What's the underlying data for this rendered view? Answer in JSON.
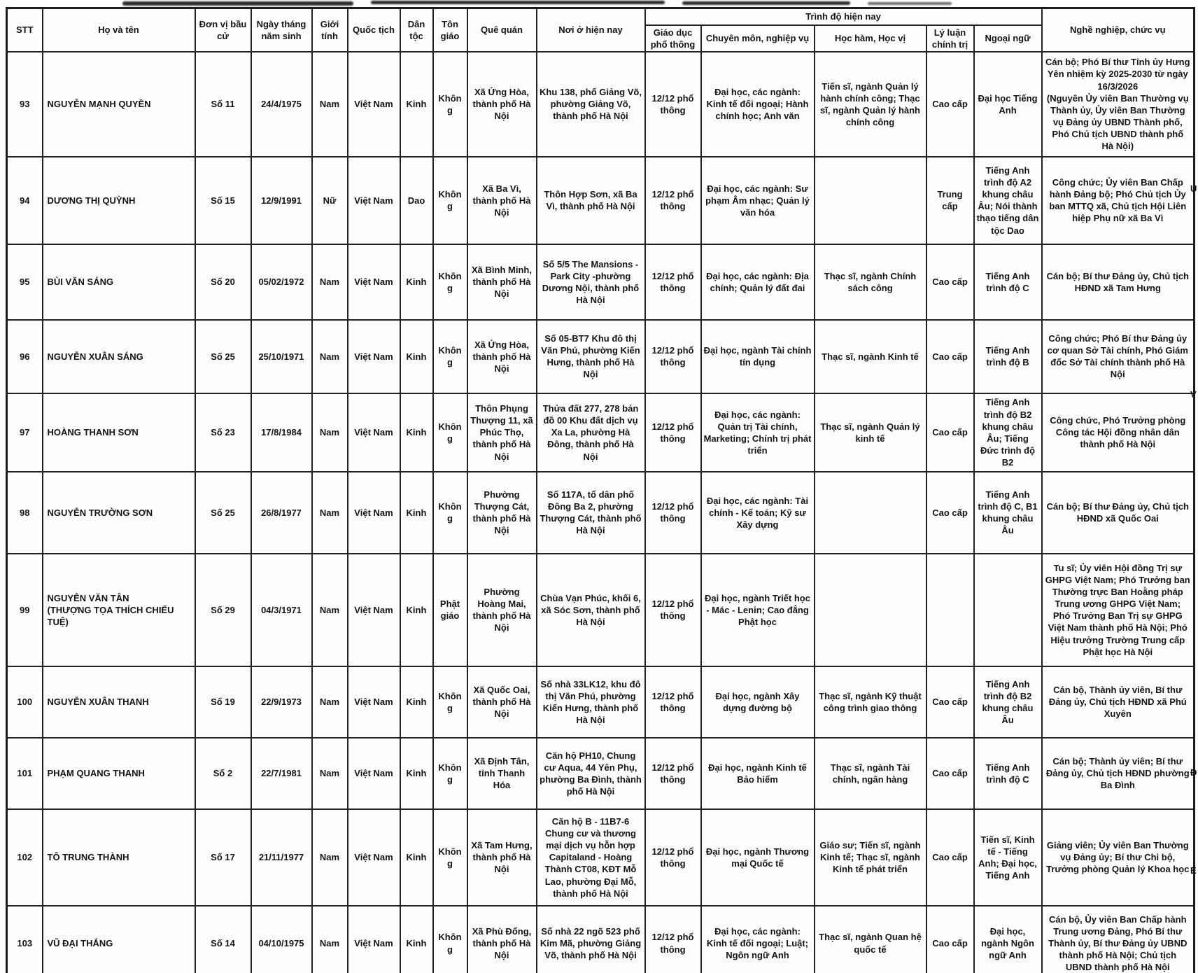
{
  "table": {
    "group_header": "Trình độ hiện nay",
    "columns": {
      "stt": "STT",
      "name": "Họ và tên",
      "unit": "Đơn vị bầu cử",
      "dob": "Ngày tháng năm sinh",
      "gender": "Giới tính",
      "nationality": "Quốc tịch",
      "ethnicity": "Dân tộc",
      "religion": "Tôn giáo",
      "hometown": "Quê quán",
      "residence": "Nơi ở hiện nay",
      "education": "Giáo dục phổ thông",
      "specialty": "Chuyên môn, nghiệp vụ",
      "degree": "Học hàm, Học vị",
      "politics": "Lý luận chính trị",
      "language": "Ngoại ngữ",
      "occupation": "Nghề nghiệp, chức vụ"
    },
    "rows": [
      {
        "stt": "93",
        "name": "NGUYỄN MẠNH QUYỀN",
        "unit": "Số 11",
        "dob": "24/4/1975",
        "gender": "Nam",
        "nationality": "Việt Nam",
        "ethnicity": "Kinh",
        "religion": "Không",
        "hometown": "Xã Ứng Hòa, thành phố Hà Nội",
        "residence": "Khu 138, phố Giảng Võ, phường Giảng Võ, thành phố Hà Nội",
        "education": "12/12 phổ thông",
        "specialty": "Đại học, các ngành: Kinh tế đối ngoại; Hành chính học; Anh văn",
        "degree": "Tiến sĩ, ngành Quản lý hành chính công; Thạc sĩ, ngành Quản lý hành chính công",
        "politics": "Cao cấp",
        "language": "Đại học Tiếng Anh",
        "occupation": "Cán bộ; Phó Bí thư Tỉnh ủy Hưng Yên nhiệm kỳ 2025-2030 từ ngày 16/3/2026\n(Nguyên  Ủy viên Ban Thường vụ Thành ủy, Ủy viên Ban Thường vụ Đảng ủy UBND Thành phố, Phó Chủ tịch UBND thành phố Hà Nội)"
      },
      {
        "stt": "94",
        "name": "DƯƠNG THỊ QUỲNH",
        "unit": "Số 15",
        "dob": "12/9/1991",
        "gender": "Nữ",
        "nationality": "Việt Nam",
        "ethnicity": "Dao",
        "religion": "Không",
        "hometown": "Xã Ba Vì, thành phố Hà Nội",
        "residence": "Thôn Hợp Sơn, xã Ba Vì, thành phố Hà Nội",
        "education": "12/12 phổ thông",
        "specialty": "Đại học, các ngành: Sư phạm Âm nhạc; Quản lý văn hóa",
        "degree": "",
        "politics": "Trung cấp",
        "language": "Tiếng Anh trình độ A2 khung châu Âu; Nói thành thạo tiếng dân tộc Dao",
        "occupation": "Công chức; Ủy viên Ban Chấp hành Đảng bộ; Phó Chủ tịch Ủy ban MTTQ xã, Chủ tịch Hội Liên hiệp Phụ nữ xã Ba Vì"
      },
      {
        "stt": "95",
        "name": "BÙI VĂN SÁNG",
        "unit": "Số 20",
        "dob": "05/02/1972",
        "gender": "Nam",
        "nationality": "Việt Nam",
        "ethnicity": "Kinh",
        "religion": "Không",
        "hometown": "Xã Bình Minh, thành phố Hà Nội",
        "residence": "Số 5/5 The Mansions - Park City -phường Dương Nội, thành phố Hà Nội",
        "education": "12/12 phổ thông",
        "specialty": "Đại học, các ngành: Địa chính; Quản lý đất đai",
        "degree": "Thạc sĩ, ngành Chính sách công",
        "politics": "Cao cấp",
        "language": "Tiếng Anh trình độ C",
        "occupation": "Cán bộ; Bí thư Đảng ủy, Chủ tịch HĐND xã Tam Hưng"
      },
      {
        "stt": "96",
        "name": "NGUYỄN XUÂN SÁNG",
        "unit": "Số 25",
        "dob": "25/10/1971",
        "gender": "Nam",
        "nationality": "Việt Nam",
        "ethnicity": "Kinh",
        "religion": "Không",
        "hometown": "Xã Ứng Hòa, thành phố Hà Nội",
        "residence": "Số 05-BT7 Khu đô thị Văn Phú, phường Kiến Hưng, thành phố Hà Nội",
        "education": "12/12 phổ thông",
        "specialty": "Đại học, ngành Tài chính tín dụng",
        "degree": "Thạc sĩ, ngành Kinh tế",
        "politics": "Cao cấp",
        "language": "Tiếng Anh trình độ B",
        "occupation": "Công chức; Phó Bí thư Đảng ủy cơ quan Sở Tài chính, Phó Giám đốc Sở Tài chính thành phố Hà Nội"
      },
      {
        "stt": "97",
        "name": "HOÀNG THANH SƠN",
        "unit": "Số 23",
        "dob": "17/8/1984",
        "gender": "Nam",
        "nationality": "Việt Nam",
        "ethnicity": "Kinh",
        "religion": "Không",
        "hometown": "Thôn Phụng Thượng 11, xã Phúc Thọ, thành phố Hà Nội",
        "residence": "Thửa đất 277, 278 bản đồ 00 Khu đất dịch vụ Xa La, phường Hà Đông, thành phố Hà Nội",
        "education": "12/12 phổ thông",
        "specialty": "Đại học, các ngành: Quản trị Tài chính, Marketing; Chính trị phát triển",
        "degree": "Thạc sĩ, ngành Quản lý kinh tế",
        "politics": "Cao cấp",
        "language": "Tiếng Anh trình độ B2 khung châu Âu; Tiếng Đức trình độ B2",
        "occupation": "Công chức, Phó Trưởng phòng Công tác Hội đồng nhân dân thành phố Hà Nội"
      },
      {
        "stt": "98",
        "name": "NGUYỄN TRƯỜNG SƠN",
        "unit": "Số 25",
        "dob": "26/8/1977",
        "gender": "Nam",
        "nationality": "Việt Nam",
        "ethnicity": "Kinh",
        "religion": "Không",
        "hometown": "Phường Thượng Cát, thành phố Hà Nội",
        "residence": "Số 117A, tổ dân phố Đông Ba 2, phường Thượng Cát, thành phố Hà Nội",
        "education": "12/12 phổ thông",
        "specialty": "Đại học, các ngành: Tài chính - Kế toán; Kỹ sư Xây dựng",
        "degree": "",
        "politics": "Cao cấp",
        "language": "Tiếng Anh trình độ C, B1 khung châu Âu",
        "occupation": "Cán bộ; Bí thư Đảng ủy, Chủ tịch HĐND xã Quốc Oai"
      },
      {
        "stt": "99",
        "name": "NGUYỄN VĂN TÂN\n(THƯỢNG TỌA THÍCH CHIẾU TUỆ)",
        "unit": "Số 29",
        "dob": "04/3/1971",
        "gender": "Nam",
        "nationality": "Việt Nam",
        "ethnicity": "Kinh",
        "religion": "Phật giáo",
        "hometown": "Phường Hoàng Mai, thành phố Hà Nội",
        "residence": "Chùa Vạn Phúc, khối 6, xã Sóc Sơn, thành phố Hà Nội",
        "education": "12/12 phổ thông",
        "specialty": "Đại học, ngành Triết học - Mác - Lenin; Cao đẳng Phật học",
        "degree": "",
        "politics": "",
        "language": "",
        "occupation": "Tu sĩ; Ủy viên Hội đồng Trị sự GHPG Việt Nam; Phó Trưởng ban Thường trực Ban Hoằng pháp Trung ương GHPG Việt Nam; Phó Trưởng Ban Trị sự GHPG Việt Nam thành phố Hà Nội; Phó Hiệu trưởng Trường Trung cấp Phật học Hà Nội"
      },
      {
        "stt": "100",
        "name": "NGUYỄN XUÂN THANH",
        "unit": "Số 19",
        "dob": "22/9/1973",
        "gender": "Nam",
        "nationality": "Việt Nam",
        "ethnicity": "Kinh",
        "religion": "Không",
        "hometown": "Xã Quốc Oai, thành phố Hà Nội",
        "residence": "Số nhà 33LK12, khu đô thị Văn Phú, phường Kiến Hưng, thành phố Hà Nội",
        "education": "12/12 phổ thông",
        "specialty": "Đại học, ngành Xây dựng đường bộ",
        "degree": "Thạc sĩ, ngành Kỹ thuật công trình giao thông",
        "politics": "Cao cấp",
        "language": "Tiếng Anh trình độ B2 khung châu Âu",
        "occupation": "Cán bộ, Thành ủy viên, Bí thư Đảng ủy, Chủ tịch HĐND xã Phú Xuyên"
      },
      {
        "stt": "101",
        "name": "PHẠM QUANG THANH",
        "unit": "Số 2",
        "dob": "22/7/1981",
        "gender": "Nam",
        "nationality": "Việt Nam",
        "ethnicity": "Kinh",
        "religion": "Không",
        "hometown": "Xã Định Tân, tỉnh Thanh Hóa",
        "residence": "Căn hộ PH10, Chung cư Aqua, 44 Yên Phụ, phường Ba Đình, thành phố Hà Nội",
        "education": "12/12 phổ thông",
        "specialty": "Đại học, ngành Kinh tế Bảo hiểm",
        "degree": "Thạc sĩ, ngành Tài chính, ngân hàng",
        "politics": "Cao cấp",
        "language": "Tiếng Anh trình độ C",
        "occupation": "Cán bộ; Thành ủy viên; Bí thư Đảng ủy, Chủ tịch HĐND phường Ba Đình"
      },
      {
        "stt": "102",
        "name": "TÔ TRUNG THÀNH",
        "unit": "Số 17",
        "dob": "21/11/1977",
        "gender": "Nam",
        "nationality": "Việt Nam",
        "ethnicity": "Kinh",
        "religion": "Không",
        "hometown": "Xã Tam Hưng, thành phố Hà Nội",
        "residence": "Căn hộ B - 11B7-6 Chung cư và thương mại dịch vụ hỗn hợp Capitaland - Hoàng Thành CT08, KĐT Mỗ Lao, phường Đại Mỗ, thành phố Hà Nội",
        "education": "12/12 phổ thông",
        "specialty": "Đại học, ngành Thương mại Quốc tế",
        "degree": "Giáo sư; Tiến sĩ, ngành Kinh tế; Thạc sĩ, ngành Kinh tế phát triển",
        "politics": "Cao cấp",
        "language": "Tiến sĩ, Kinh tế - Tiếng Anh; Đại học, Tiếng Anh",
        "occupation": "Giảng viên; Ủy viên Ban Thường vụ Đảng ủy; Bí thư Chi bộ, Trưởng phòng Quản lý Khoa học"
      },
      {
        "stt": "103",
        "name": "VŨ ĐẠI THẮNG",
        "unit": "Số 14",
        "dob": "04/10/1975",
        "gender": "Nam",
        "nationality": "Việt Nam",
        "ethnicity": "Kinh",
        "religion": "Không",
        "hometown": "Xã Phù Đổng, thành phố Hà Nội",
        "residence": "Số nhà 22 ngõ 523 phố Kim Mã, phường Giảng Võ, thành phố Hà Nội",
        "education": "12/12 phổ thông",
        "specialty": "Đại học, các ngành: Kinh tế đối ngoại; Luật; Ngôn ngữ Anh",
        "degree": "Thạc sĩ, ngành Quan hệ quốc tế",
        "politics": "Cao cấp",
        "language": "Đại học, ngành Ngôn ngữ Anh",
        "occupation": "Cán bộ, Ủy viên Ban Chấp hành Trung ương Đảng, Phó Bí thư Thành ủy, Bí thư Đảng ủy UBND thành phố Hà Nội; Chủ tịch UBND thành phố Hà Nội"
      }
    ]
  },
  "edge_fragments": [
    "U",
    "V",
    "Đ",
    "E"
  ]
}
